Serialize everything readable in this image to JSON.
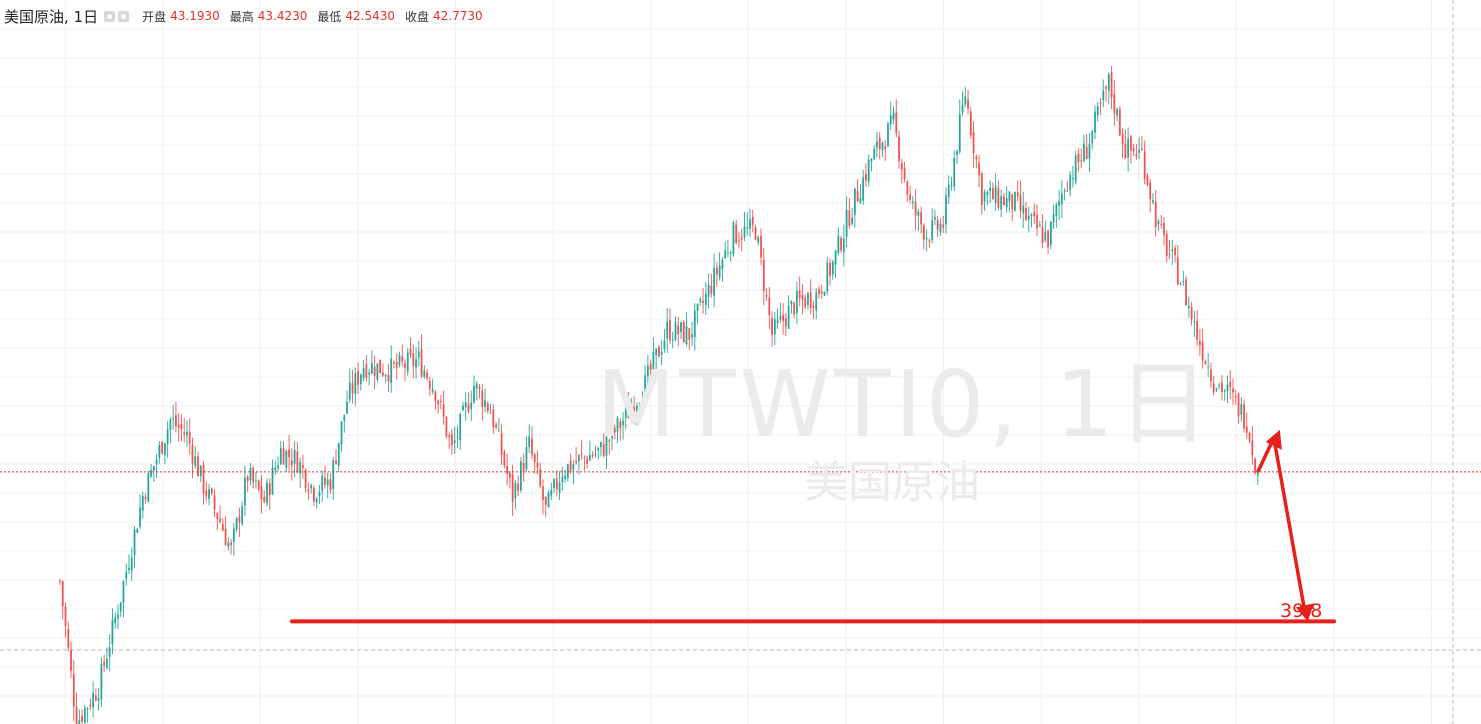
{
  "header": {
    "symbol_title": "美国原油, 1日",
    "icons": [
      "eye-icon",
      "settings-icon"
    ],
    "ohlc": [
      {
        "label": "开盘",
        "value": "43.1930"
      },
      {
        "label": "最高",
        "value": "43.4230"
      },
      {
        "label": "最低",
        "value": "42.5430"
      },
      {
        "label": "收盘",
        "value": "42.7730"
      }
    ]
  },
  "watermark": {
    "main": "MTWTI0, 1日",
    "sub": "美国原油"
  },
  "colors": {
    "up": "#26a69a",
    "down": "#ef5350",
    "annotation": "#e8201a",
    "price_line": "#e0322a"
  },
  "chart_data": {
    "type": "candlestick",
    "title": "美国原油, 1日",
    "xlabel": "",
    "ylabel": "",
    "ylim": [
      37.8,
      51.2
    ],
    "grid": true,
    "last_close": 42.773,
    "shape_waypoints": [
      [
        0,
        40.6
      ],
      [
        6,
        37.8
      ],
      [
        14,
        38.5
      ],
      [
        22,
        40.3
      ],
      [
        30,
        42.3
      ],
      [
        40,
        43.8
      ],
      [
        46,
        43.5
      ],
      [
        52,
        42.5
      ],
      [
        58,
        41.8
      ],
      [
        62,
        41.2
      ],
      [
        68,
        42.7
      ],
      [
        74,
        42.2
      ],
      [
        80,
        43.2
      ],
      [
        86,
        43.0
      ],
      [
        92,
        42.4
      ],
      [
        98,
        42.6
      ],
      [
        104,
        44.2
      ],
      [
        110,
        44.9
      ],
      [
        120,
        44.8
      ],
      [
        130,
        45.0
      ],
      [
        136,
        44.4
      ],
      [
        142,
        43.2
      ],
      [
        150,
        44.5
      ],
      [
        156,
        44.0
      ],
      [
        164,
        42.3
      ],
      [
        170,
        43.3
      ],
      [
        176,
        42.0
      ],
      [
        182,
        42.8
      ],
      [
        188,
        43.0
      ],
      [
        196,
        43.2
      ],
      [
        204,
        43.8
      ],
      [
        212,
        44.5
      ],
      [
        220,
        45.6
      ],
      [
        228,
        45.5
      ],
      [
        236,
        46.5
      ],
      [
        244,
        47.5
      ],
      [
        252,
        47.6
      ],
      [
        258,
        45.5
      ],
      [
        266,
        46.1
      ],
      [
        274,
        46.3
      ],
      [
        280,
        46.9
      ],
      [
        286,
        47.9
      ],
      [
        294,
        49.0
      ],
      [
        302,
        49.7
      ],
      [
        308,
        48.1
      ],
      [
        314,
        47.5
      ],
      [
        320,
        47.7
      ],
      [
        328,
        50.3
      ],
      [
        334,
        48.3
      ],
      [
        340,
        48.2
      ],
      [
        346,
        48.1
      ],
      [
        352,
        47.7
      ],
      [
        358,
        47.4
      ],
      [
        364,
        48.5
      ],
      [
        372,
        49.2
      ],
      [
        380,
        50.5
      ],
      [
        386,
        49.2
      ],
      [
        392,
        49.1
      ],
      [
        398,
        47.6
      ],
      [
        406,
        46.6
      ],
      [
        412,
        45.5
      ],
      [
        418,
        44.6
      ],
      [
        424,
        44.3
      ],
      [
        430,
        43.8
      ],
      [
        434,
        42.7
      ]
    ],
    "annotations": {
      "support_level": 39.8,
      "support_label": "39.8"
    }
  },
  "legend_placement": "top-left"
}
